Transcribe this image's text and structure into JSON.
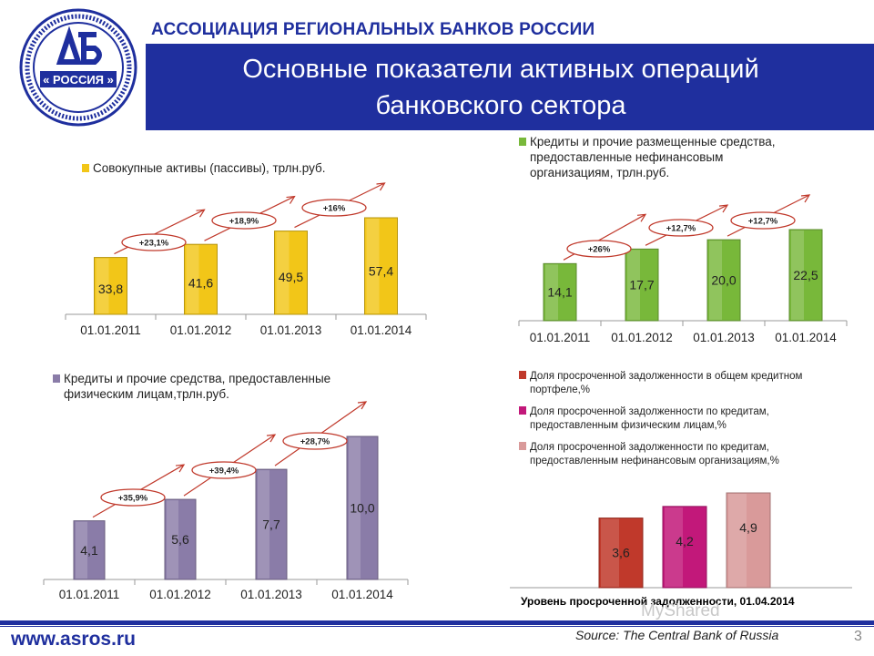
{
  "header": {
    "org_name": "АССОЦИАЦИЯ РЕГИОНАЛЬНЫХ БАНКОВ РОССИИ",
    "title_line1": "Основные показатели активных операций",
    "title_line2": "банковского сектора",
    "logo_text": "« РОССИЯ »",
    "brand_color": "#1f2f9e"
  },
  "chart_data": [
    {
      "id": "assets",
      "type": "bar",
      "title": "Совокупные активы (пассивы), трлн.руб.",
      "categories": [
        "01.01.2011",
        "01.01.2012",
        "01.01.2013",
        "01.01.2014"
      ],
      "values": [
        33.8,
        41.6,
        49.5,
        57.4
      ],
      "value_labels": [
        "33,8",
        "41,6",
        "49,5",
        "57,4"
      ],
      "growth_labels": [
        "+23,1%",
        "+18,9%",
        "+16%"
      ],
      "color": "#f2c618",
      "ylim": [
        0,
        60
      ]
    },
    {
      "id": "corp_loans",
      "type": "bar",
      "title": "Кредиты и прочие размещенные средства, предоставленные нефинансовым организациям, трлн.руб.",
      "title_lines": [
        "Кредиты и прочие размещенные средства,",
        "предоставленные нефинансовым",
        "организациям, трлн.руб."
      ],
      "categories": [
        "01.01.2011",
        "01.01.2012",
        "01.01.2013",
        "01.01.2014"
      ],
      "values": [
        14.1,
        17.7,
        20.0,
        22.5
      ],
      "value_labels": [
        "14,1",
        "17,7",
        "20,0",
        "22,5"
      ],
      "growth_labels": [
        "+26%",
        "+12,7%",
        "+12,7%"
      ],
      "color": "#78b83a",
      "ylim": [
        0,
        24
      ]
    },
    {
      "id": "retail_loans",
      "type": "bar",
      "title": "Кредиты и прочие средства, предоставленные физическим лицам,трлн.руб.",
      "title_lines": [
        "Кредиты и прочие средства, предоставленные",
        "физическим лицам,трлн.руб."
      ],
      "categories": [
        "01.01.2011",
        "01.01.2012",
        "01.01.2013",
        "01.01.2014"
      ],
      "values": [
        4.1,
        5.6,
        7.7,
        10.0
      ],
      "value_labels": [
        "4,1",
        "5,6",
        "7,7",
        "10,0"
      ],
      "growth_labels": [
        "+35,9%",
        "+39,4%",
        "+28,7%"
      ],
      "color": "#8a7ca8",
      "ylim": [
        0,
        10.5
      ]
    },
    {
      "id": "overdue",
      "type": "bar",
      "title": "Уровень просроченной задолженности, 01.04.2014",
      "series": [
        {
          "name": "Доля просроченной задолженности в общем кредитном портфеле,%",
          "lines": [
            "Доля просроченной задолженности в общем кредитном",
            "портфеле,%"
          ],
          "value": 3.6,
          "label": "3,6",
          "color": "#c0392b"
        },
        {
          "name": "Доля просроченной задолженности по кредитам, предоставленным физическим лицам,%",
          "lines": [
            "Доля просроченной задолженности по кредитам,",
            "предоставленным физическим лицам,%"
          ],
          "value": 4.2,
          "label": "4,2",
          "color": "#c2187a"
        },
        {
          "name": "Доля просроченной задолженности по кредитам, предоставленным нефинансовым организациям,%",
          "lines": [
            "Доля просроченной задолженности по кредитам,",
            "предоставленным нефинансовым организациям,%"
          ],
          "value": 4.9,
          "label": "4,9",
          "color": "#d99a9a"
        }
      ],
      "ylim": [
        0,
        5.2
      ]
    }
  ],
  "footer": {
    "site": "www.asros.ru",
    "source": "Source: The Central Bank of Russia",
    "page_number": "3",
    "watermark": "MyShared"
  }
}
